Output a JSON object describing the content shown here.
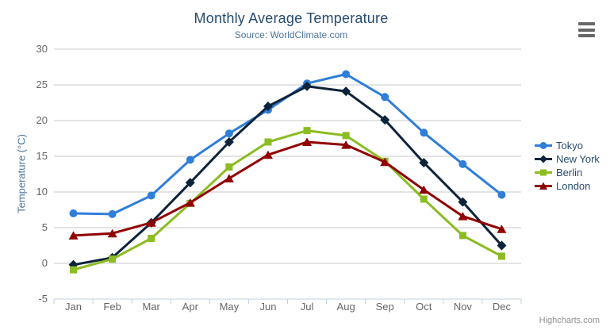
{
  "chart_data": {
    "type": "line",
    "title": "Monthly Average Temperature",
    "subtitle": "Source: WorldClimate.com",
    "categories": [
      "Jan",
      "Feb",
      "Mar",
      "Apr",
      "May",
      "Jun",
      "Jul",
      "Aug",
      "Sep",
      "Oct",
      "Nov",
      "Dec"
    ],
    "series": [
      {
        "name": "Tokyo",
        "color": "#2f7ed8",
        "marker": "circle",
        "values": [
          7.0,
          6.9,
          9.5,
          14.5,
          18.2,
          21.5,
          25.2,
          26.5,
          23.3,
          18.3,
          13.9,
          9.6
        ]
      },
      {
        "name": "New York",
        "color": "#0d233a",
        "marker": "diamond",
        "values": [
          -0.2,
          0.8,
          5.7,
          11.3,
          17.0,
          22.0,
          24.8,
          24.1,
          20.1,
          14.1,
          8.6,
          2.5
        ]
      },
      {
        "name": "Berlin",
        "color": "#8bbc21",
        "marker": "square",
        "values": [
          -0.9,
          0.6,
          3.5,
          8.4,
          13.5,
          17.0,
          18.6,
          17.9,
          14.3,
          9.0,
          3.9,
          1.0
        ]
      },
      {
        "name": "London",
        "color": "#910000",
        "marker": "triangle-up",
        "values": [
          3.9,
          4.2,
          5.7,
          8.5,
          11.9,
          15.2,
          17.0,
          16.6,
          14.2,
          10.3,
          6.6,
          4.8
        ]
      }
    ],
    "xlabel": "",
    "ylabel": "Temperature (°C)",
    "ylim": [
      -5,
      30
    ],
    "ytick_step": 5,
    "yticks": [
      30,
      25,
      20,
      15,
      10,
      5,
      0,
      -5
    ],
    "grid": true,
    "legend_position": "right"
  },
  "credits": "Highcharts.com",
  "menu": {
    "icon": "hamburger-menu"
  },
  "colors": {
    "title": "#274b6d",
    "subtitle": "#4d759e",
    "axis_title": "#4d759e",
    "axis_labels": "#666666",
    "grid_line": "#c8c8c8",
    "axis_line": "#c0d0e0",
    "legend_text": "#274b6d",
    "credits_text": "#909090",
    "menu_icon": "#666666"
  }
}
